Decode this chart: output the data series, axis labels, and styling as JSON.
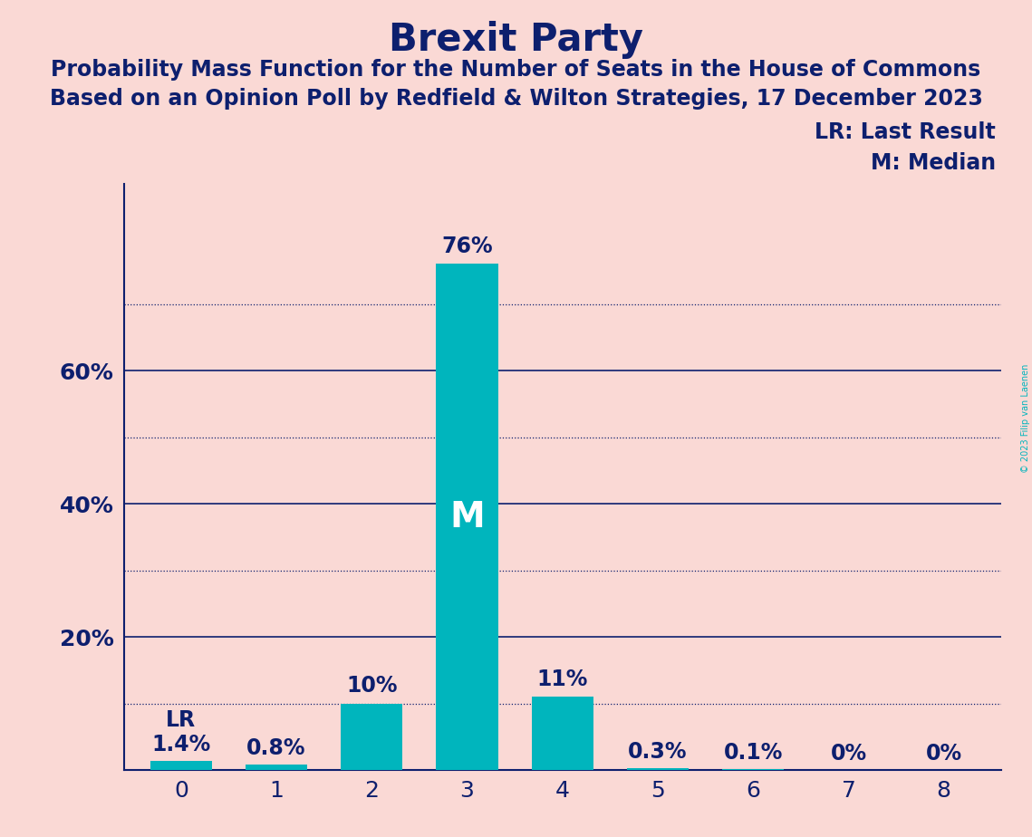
{
  "title": "Brexit Party",
  "subtitle1": "Probability Mass Function for the Number of Seats in the House of Commons",
  "subtitle2": "Based on an Opinion Poll by Redfield & Wilton Strategies, 17 December 2023",
  "categories": [
    0,
    1,
    2,
    3,
    4,
    5,
    6,
    7,
    8
  ],
  "values": [
    1.4,
    0.8,
    10.0,
    76.0,
    11.0,
    0.3,
    0.1,
    0.0,
    0.0
  ],
  "bar_color": "#00B5BD",
  "background_color": "#FAD9D5",
  "title_color": "#0D1F6E",
  "text_color": "#0D1F6E",
  "grid_solid_color": "#0D1F6E",
  "grid_dotted_color": "#0D1F6E",
  "bar_labels": [
    "1.4%",
    "0.8%",
    "10%",
    "76%",
    "11%",
    "0.3%",
    "0.1%",
    "0%",
    "0%"
  ],
  "median_bar": 3,
  "lr_bar": 0,
  "yticks": [
    20,
    40,
    60
  ],
  "ylim": [
    0,
    88
  ],
  "legend_lr": "LR: Last Result",
  "legend_m": "M: Median",
  "copyright": "© 2023 Filip van Laenen",
  "title_fontsize": 30,
  "subtitle_fontsize": 17,
  "bar_label_fontsize": 17,
  "axis_tick_fontsize": 18,
  "legend_fontsize": 17
}
